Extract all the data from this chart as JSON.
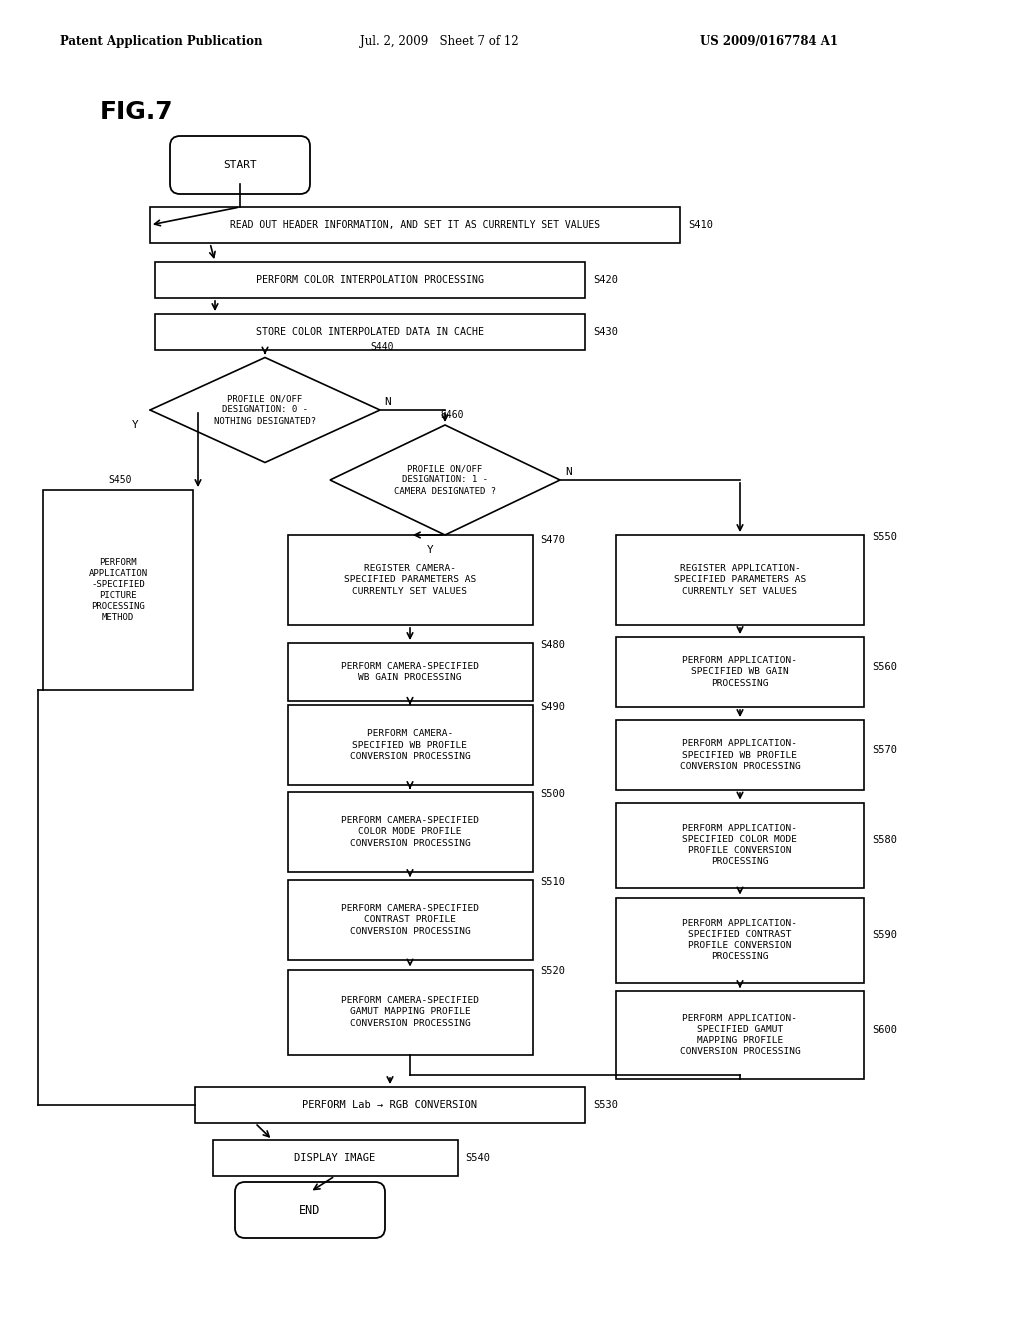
{
  "title": "FIG.7",
  "header_left": "Patent Application Publication",
  "header_mid": "Jul. 2, 2009   Sheet 7 of 12",
  "header_right": "US 2009/0167784 A1",
  "bg_color": "#ffffff",
  "line_color": "#000000",
  "text_color": "#000000"
}
